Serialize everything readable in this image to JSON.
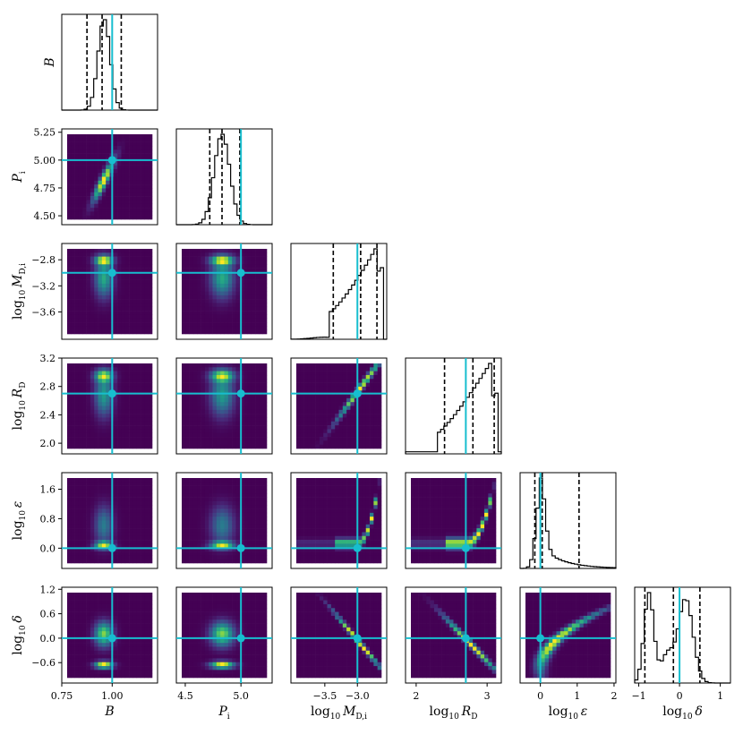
{
  "chart_data": {
    "type": "corner",
    "parameters": [
      {
        "id": "B",
        "label": "B",
        "sub": "",
        "truth": 1.0,
        "range": [
          0.75,
          1.225
        ],
        "ticks": [
          0.75,
          1.0
        ],
        "tick_labels": [
          "0.75",
          "1.00"
        ],
        "hist_center": 0.96,
        "hist_width": 0.03,
        "quantiles": [
          0.875,
          0.95,
          1.045
        ]
      },
      {
        "id": "P_i",
        "label": "P",
        "sub": "i",
        "truth": 5.0,
        "range": [
          4.42,
          5.28
        ],
        "ticks": [
          4.5,
          4.75,
          5.0,
          5.25
        ],
        "tick_labels": [
          "4.50",
          "4.75",
          "5.00",
          "5.25"
        ],
        "x_tick_labels": [
          "4.5",
          "5.0"
        ],
        "x_ticks": [
          4.5,
          5.0
        ],
        "hist_center": 4.83,
        "hist_width": 0.07,
        "quantiles": [
          4.72,
          4.83,
          4.99
        ]
      },
      {
        "id": "MD",
        "label": "M",
        "sub": "D,i",
        "prefix": "log10",
        "truth": -3.0,
        "range": [
          -4.02,
          -2.55
        ],
        "ticks": [
          -3.6,
          -3.2,
          -2.8
        ],
        "tick_labels": [
          "-3.6",
          "-3.2",
          "-2.8"
        ],
        "x_ticks": [
          -3.5,
          -3.0
        ],
        "x_tick_labels": [
          "-3.5",
          "-3.0"
        ],
        "hist_center": -2.75,
        "hist_width": 0.25,
        "quantiles": [
          -3.37,
          -2.95,
          -2.7
        ]
      },
      {
        "id": "RD",
        "label": "R",
        "sub": "D",
        "prefix": "log10",
        "truth": 2.7,
        "range": [
          1.85,
          3.2
        ],
        "ticks": [
          2.0,
          2.4,
          2.8,
          3.2
        ],
        "tick_labels": [
          "2.0",
          "2.4",
          "2.8",
          "3.2"
        ],
        "x_ticks": [
          2,
          3
        ],
        "x_tick_labels": [
          "2",
          "3"
        ],
        "hist_center": 3.0,
        "hist_width": 0.2,
        "quantiles": [
          2.4,
          2.8,
          3.1
        ]
      },
      {
        "id": "eps",
        "label": "ε",
        "sub": "",
        "prefix": "log10",
        "truth": 0.0,
        "range": [
          -0.55,
          2.05
        ],
        "ticks": [
          0.0,
          0.8,
          1.6
        ],
        "tick_labels": [
          "0.0",
          "0.8",
          "1.6"
        ],
        "x_ticks": [
          0,
          1,
          2
        ],
        "x_tick_labels": [
          "0",
          "1",
          "2"
        ],
        "hist_center": 0.0,
        "hist_width": 0.25,
        "quantiles": [
          -0.15,
          0.05,
          1.05
        ]
      },
      {
        "id": "delta",
        "label": "δ",
        "sub": "",
        "prefix": "log10",
        "truth": 0.0,
        "range": [
          -1.1,
          1.25
        ],
        "ticks": [
          -0.6,
          0.0,
          0.6,
          1.2
        ],
        "tick_labels": [
          "-0.6",
          "0.0",
          "0.6",
          "1.2"
        ],
        "x_ticks": [
          -1,
          0,
          1
        ],
        "x_tick_labels": [
          "-1",
          "0",
          "1"
        ],
        "hist_center": 0.0,
        "hist_width": 0.3,
        "quantiles": [
          -0.85,
          -0.15,
          0.5
        ]
      }
    ],
    "truth_color": "#17becf",
    "colormap": "viridis",
    "grid": false
  }
}
